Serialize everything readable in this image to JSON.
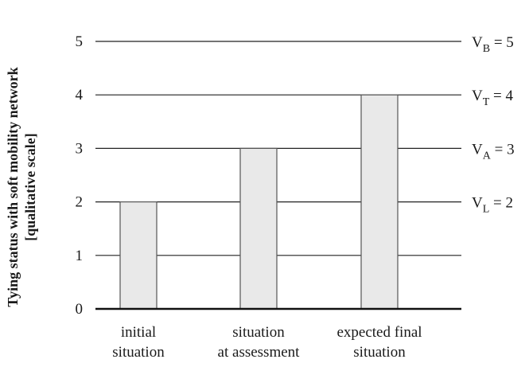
{
  "chart_data": {
    "type": "bar",
    "ylabel": [
      "Tying status with soft mobility network",
      "[qualitative scale]"
    ],
    "xlabel": "",
    "ylim": [
      0,
      5
    ],
    "yticks": [
      0,
      1,
      2,
      3,
      4,
      5
    ],
    "grid": true,
    "categories": [
      [
        "initial",
        "situation"
      ],
      [
        "situation",
        "at assessment"
      ],
      [
        "expected final",
        "situation"
      ]
    ],
    "values": [
      2,
      3,
      4
    ],
    "bar_color": "#e9e9e9",
    "bar_edge_color": "#555555",
    "reference_levels": [
      {
        "symbol": "V",
        "subscript": "B",
        "value": 5,
        "text": " = 5"
      },
      {
        "symbol": "V",
        "subscript": "T",
        "value": 4,
        "text": " = 4"
      },
      {
        "symbol": "V",
        "subscript": "A",
        "value": 3,
        "text": " = 3"
      },
      {
        "symbol": "V",
        "subscript": "L",
        "value": 2,
        "text": " = 2"
      }
    ]
  }
}
